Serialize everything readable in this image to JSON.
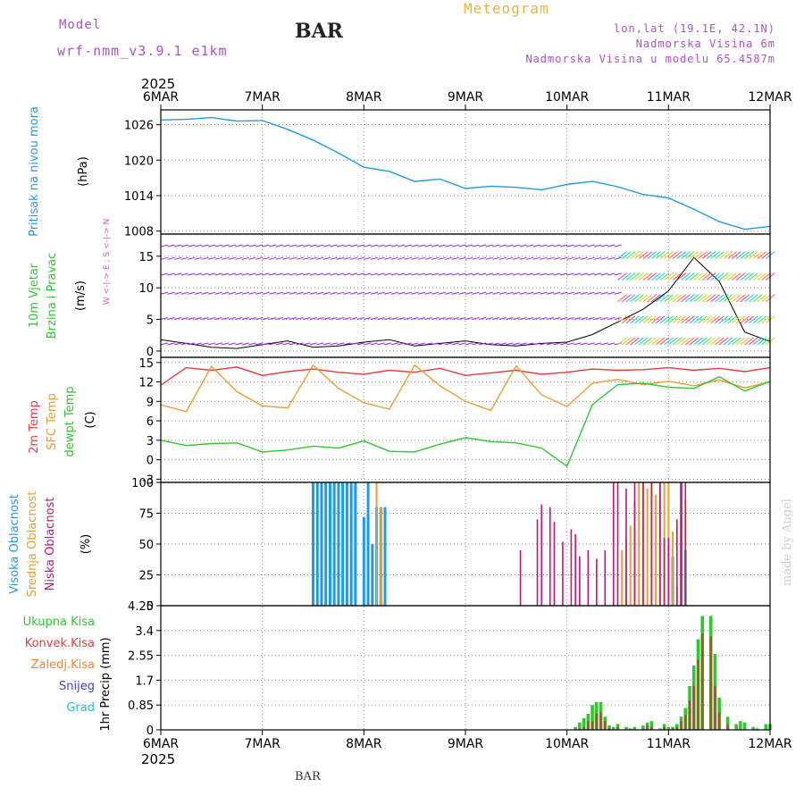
{
  "header": {
    "model_label": "Model",
    "model_name": "wrf-nmm_v3.9.1 e1km",
    "station": "BAR",
    "product": "Meteogram",
    "coords": "lon,lat (19.1E, 42.1N)",
    "elevation": "Nadmorska Visina 6m",
    "model_elevation": "Nadmorska Visina u modelu 65.4587m"
  },
  "footer": {
    "station": "BAR",
    "credit": "made by Angel"
  },
  "colors": {
    "pressure": "#1e9be8",
    "temp2m": "#e83c3c",
    "sfc_temp": "#e8a030",
    "dewpoint": "#2ec82e",
    "wind": "#8a2be2",
    "high_cloud": "#1e9be8",
    "mid_cloud": "#e8a030",
    "low_cloud": "#c0157a",
    "total_precip": "#2ec82e",
    "conv_precip": "#e83c3c",
    "frz_precip": "#ff7f27",
    "snow": "#4040e0",
    "hail": "#20c0c0",
    "grid": "#888888",
    "axis": "#000000"
  },
  "chart_data": [
    {
      "type": "line",
      "id": "pressure",
      "ylabel": "Pritisak na nivou mora",
      "unit": "(hPa)",
      "ylim": [
        1007.5,
        1028.5
      ],
      "yticks": [
        1008,
        1014,
        1020,
        1026
      ],
      "x_hours": [
        0,
        6,
        12,
        18,
        24,
        30,
        36,
        42,
        48,
        54,
        60,
        66,
        72,
        78,
        84,
        90,
        96,
        102,
        108,
        114,
        120,
        126,
        132,
        138,
        144
      ],
      "series": [
        {
          "name": "Pritisak na nivou mora",
          "values": [
            1026.8,
            1026.9,
            1027.2,
            1026.6,
            1026.7,
            1025.2,
            1023.4,
            1021.2,
            1018.8,
            1018.1,
            1016.4,
            1016.8,
            1015.2,
            1015.6,
            1015.4,
            1015.0,
            1015.9,
            1016.4,
            1015.5,
            1014.2,
            1013.6,
            1011.7,
            1009.6,
            1008.3,
            1008.8
          ]
        }
      ]
    },
    {
      "type": "line",
      "id": "wind",
      "ylabel": "10m Vjetar",
      "ylabel2": "Brzina i Pravac",
      "unit": "(m/s)",
      "ylim": [
        -1,
        18.5
      ],
      "yticks": [
        0,
        5,
        10,
        15
      ],
      "compass": "W <-|-> E ; S <-|-> N",
      "x_hours": [
        0,
        6,
        12,
        18,
        24,
        30,
        36,
        42,
        48,
        54,
        60,
        66,
        72,
        78,
        84,
        90,
        96,
        102,
        108,
        114,
        120,
        126,
        132,
        138,
        144
      ],
      "series": [
        {
          "name": "10m Vjetar",
          "values": [
            1.8,
            1.2,
            0.6,
            0.4,
            1.0,
            1.6,
            0.6,
            0.8,
            1.4,
            1.8,
            0.8,
            1.2,
            1.6,
            1.0,
            0.8,
            1.2,
            1.4,
            2.6,
            4.6,
            6.6,
            9.5,
            14.8,
            11.0,
            3.0,
            1.5
          ]
        }
      ]
    },
    {
      "type": "line",
      "id": "temperature",
      "ylabel": "2m Temp",
      "ylabel2": "SFC Temp",
      "ylabel3": "dewpt Temp",
      "unit": "(C)",
      "ylim": [
        -3.5,
        15.8
      ],
      "yticks": [
        -3,
        0,
        3,
        6,
        9,
        12,
        15
      ],
      "x_hours": [
        0,
        6,
        12,
        18,
        24,
        30,
        36,
        42,
        48,
        54,
        60,
        66,
        72,
        78,
        84,
        90,
        96,
        102,
        108,
        114,
        120,
        126,
        132,
        138,
        144
      ],
      "series": [
        {
          "name": "2m Temp",
          "values": [
            11.5,
            14.2,
            13.8,
            14.3,
            13.0,
            13.6,
            14.0,
            13.5,
            13.2,
            13.8,
            13.5,
            14.1,
            13.0,
            13.4,
            13.8,
            13.2,
            13.5,
            14.0,
            13.8,
            13.9,
            14.2,
            13.8,
            14.1,
            13.6,
            14.2
          ]
        },
        {
          "name": "SFC Temp",
          "values": [
            8.5,
            7.4,
            14.4,
            10.5,
            8.3,
            8.0,
            14.6,
            11.0,
            8.8,
            7.8,
            14.6,
            11.4,
            9.0,
            7.6,
            14.5,
            10.0,
            8.2,
            11.8,
            12.4,
            11.6,
            12.1,
            11.4,
            12.3,
            11.1,
            12.0
          ]
        },
        {
          "name": "dewpt Temp",
          "values": [
            3.0,
            2.2,
            2.5,
            2.6,
            1.2,
            1.5,
            2.1,
            1.8,
            2.9,
            1.3,
            1.2,
            2.4,
            3.4,
            2.8,
            2.6,
            1.8,
            -1.0,
            8.5,
            11.6,
            11.8,
            11.2,
            11.0,
            12.8,
            10.6,
            12.1
          ]
        }
      ]
    },
    {
      "type": "bar",
      "id": "clouds",
      "ylabel": "Visoka Oblacnost",
      "ylabel2": "Srednja Oblacnost",
      "ylabel3": "Niska Oblacnost",
      "unit": "(%)",
      "ylim": [
        0,
        100
      ],
      "yticks": [
        0,
        25,
        50,
        75,
        100
      ],
      "series": [
        {
          "name": "Visoka Oblacnost",
          "hours": [
            36,
            37,
            38,
            39,
            40,
            41,
            42,
            43,
            44,
            45,
            46,
            48,
            49,
            50,
            51,
            52,
            53,
            121,
            123,
            124
          ],
          "values": [
            100,
            100,
            100,
            100,
            100,
            100,
            100,
            100,
            100,
            100,
            100,
            72,
            100,
            50,
            80,
            80,
            80,
            40,
            100,
            45
          ]
        },
        {
          "name": "Srednja Oblacnost",
          "hours": [
            51,
            52,
            109,
            110,
            111,
            112,
            113,
            114,
            115,
            116,
            117,
            118,
            119,
            120,
            121,
            122,
            124
          ],
          "values": [
            100,
            80,
            45,
            55,
            65,
            85,
            100,
            100,
            95,
            100,
            90,
            100,
            100,
            100,
            60,
            15,
            85
          ]
        },
        {
          "name": "Niska Oblacnost",
          "hours": [
            85,
            89,
            90,
            92,
            93,
            95,
            97,
            98,
            99,
            101,
            103,
            105,
            107,
            108,
            110,
            112,
            114,
            116,
            118,
            119,
            120,
            122,
            123,
            124
          ],
          "values": [
            45,
            70,
            82,
            80,
            68,
            52,
            62,
            58,
            40,
            45,
            38,
            45,
            100,
            100,
            95,
            100,
            100,
            100,
            100,
            55,
            55,
            70,
            100,
            100
          ]
        }
      ]
    },
    {
      "type": "bar",
      "id": "precip",
      "ylabel": "1hr Precip",
      "unit": "(mm)",
      "ylim": [
        0,
        4.25
      ],
      "yticks": [
        "0",
        "0.85",
        "1.7",
        "2.55",
        "3.4",
        "4.25"
      ],
      "legend": [
        "Ukupna Kisa",
        "Konvek.Kisa",
        "Zaledj.Kisa",
        "Snijeg",
        "Grad"
      ],
      "series": [
        {
          "name": "Ukupna Kisa",
          "hours": [
            98,
            99,
            100,
            101,
            102,
            103,
            104,
            105,
            106,
            107,
            108,
            110,
            111,
            112,
            114,
            115,
            116,
            118,
            119,
            120,
            121,
            122,
            123,
            124,
            125,
            126,
            127,
            128,
            130,
            131,
            132,
            134,
            136,
            137,
            138,
            140,
            141,
            143,
            144
          ],
          "values": [
            0.1,
            0.25,
            0.4,
            0.55,
            0.85,
            0.95,
            0.95,
            0.45,
            0.15,
            0.1,
            0.2,
            0.1,
            0.05,
            0.1,
            0.15,
            0.25,
            0.3,
            0.05,
            0.2,
            0.1,
            0.1,
            0.2,
            0.45,
            0.75,
            1.5,
            2.2,
            3.1,
            3.9,
            3.9,
            2.6,
            1.1,
            0.45,
            0.2,
            0.3,
            0.25,
            0.1,
            0.05,
            0.2,
            0.2
          ]
        },
        {
          "name": "Konvek.Kisa",
          "hours": [
            99,
            100,
            101,
            102,
            103,
            104,
            105,
            106,
            108,
            111,
            114,
            115,
            116,
            119,
            121,
            122,
            123,
            124,
            125,
            126,
            127,
            128,
            130,
            131,
            132,
            134
          ],
          "values": [
            0.05,
            0.1,
            0.3,
            0.3,
            0.55,
            0.6,
            0.3,
            0.05,
            0.1,
            0.02,
            0.05,
            0.15,
            0.1,
            0.1,
            0.05,
            0.1,
            0.3,
            0.5,
            1.0,
            1.5,
            2.4,
            3.3,
            3.2,
            1.5,
            0.6,
            0.2
          ]
        }
      ]
    },
    {
      "type": "axis",
      "id": "time_axis",
      "year": "2025",
      "xlabels": [
        "6MAR",
        "7MAR",
        "8MAR",
        "9MAR",
        "10MAR",
        "11MAR",
        "12MAR"
      ],
      "total_hours": 144
    }
  ]
}
